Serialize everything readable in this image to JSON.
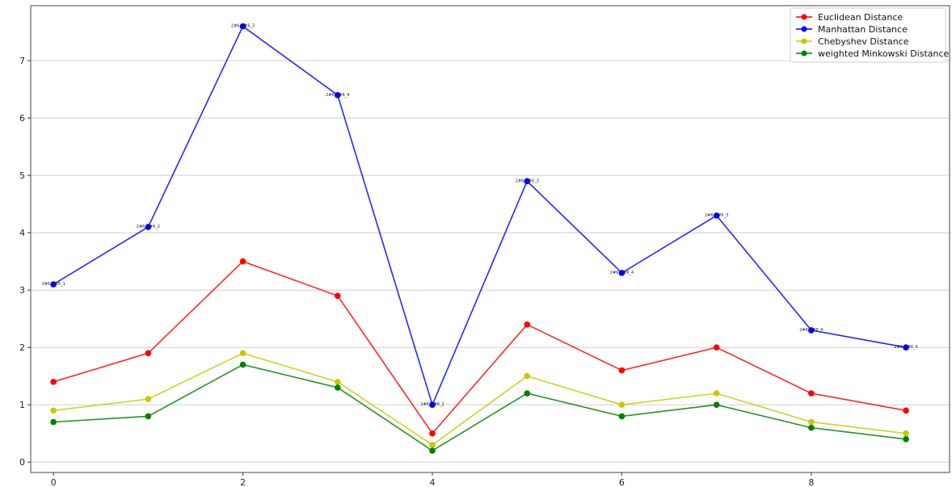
{
  "chart_data": {
    "type": "line",
    "title": "",
    "xlabel": "",
    "ylabel": "",
    "x": [
      0,
      1,
      2,
      3,
      4,
      5,
      6,
      7,
      8,
      9
    ],
    "xlim": [
      -0.24,
      9.46
    ],
    "ylim": [
      -0.18,
      7.96
    ],
    "xticks": [
      0,
      2,
      4,
      6,
      8
    ],
    "yticks": [
      0,
      1,
      2,
      3,
      4,
      5,
      6,
      7
    ],
    "grid": "y",
    "legend_position": "top-right",
    "point_labels": [
      "2#6_0#6_1",
      "2#6_0#6_2",
      "2#6_0#6_3",
      "2#6_0#6_4",
      "2#6_1#6_2",
      "2#6_1#6_3",
      "2#6_1#6_4",
      "2#6_2#6_3",
      "2#6_2#6_4",
      "2#6_3#6_4"
    ],
    "point_labels_series": "Manhattan Distance",
    "series": [
      {
        "name": "Euclidean Distance",
        "color": "#ff0000",
        "values": [
          1.4,
          1.9,
          3.5,
          2.9,
          0.5,
          2.4,
          1.6,
          2.0,
          1.2,
          0.9
        ]
      },
      {
        "name": "Manhattan Distance",
        "color": "#0000ff",
        "values": [
          3.1,
          4.1,
          7.6,
          6.4,
          1.0,
          4.9,
          3.3,
          4.3,
          2.3,
          2.0
        ]
      },
      {
        "name": "Chebyshev Distance",
        "color": "#c8c800",
        "values": [
          0.9,
          1.1,
          1.9,
          1.4,
          0.3,
          1.5,
          1.0,
          1.2,
          0.7,
          0.5
        ]
      },
      {
        "name": "weighted Minkowski Distance",
        "color": "#008000",
        "values": [
          0.7,
          0.8,
          1.7,
          1.3,
          0.2,
          1.2,
          0.8,
          1.0,
          0.6,
          0.4
        ]
      }
    ]
  }
}
